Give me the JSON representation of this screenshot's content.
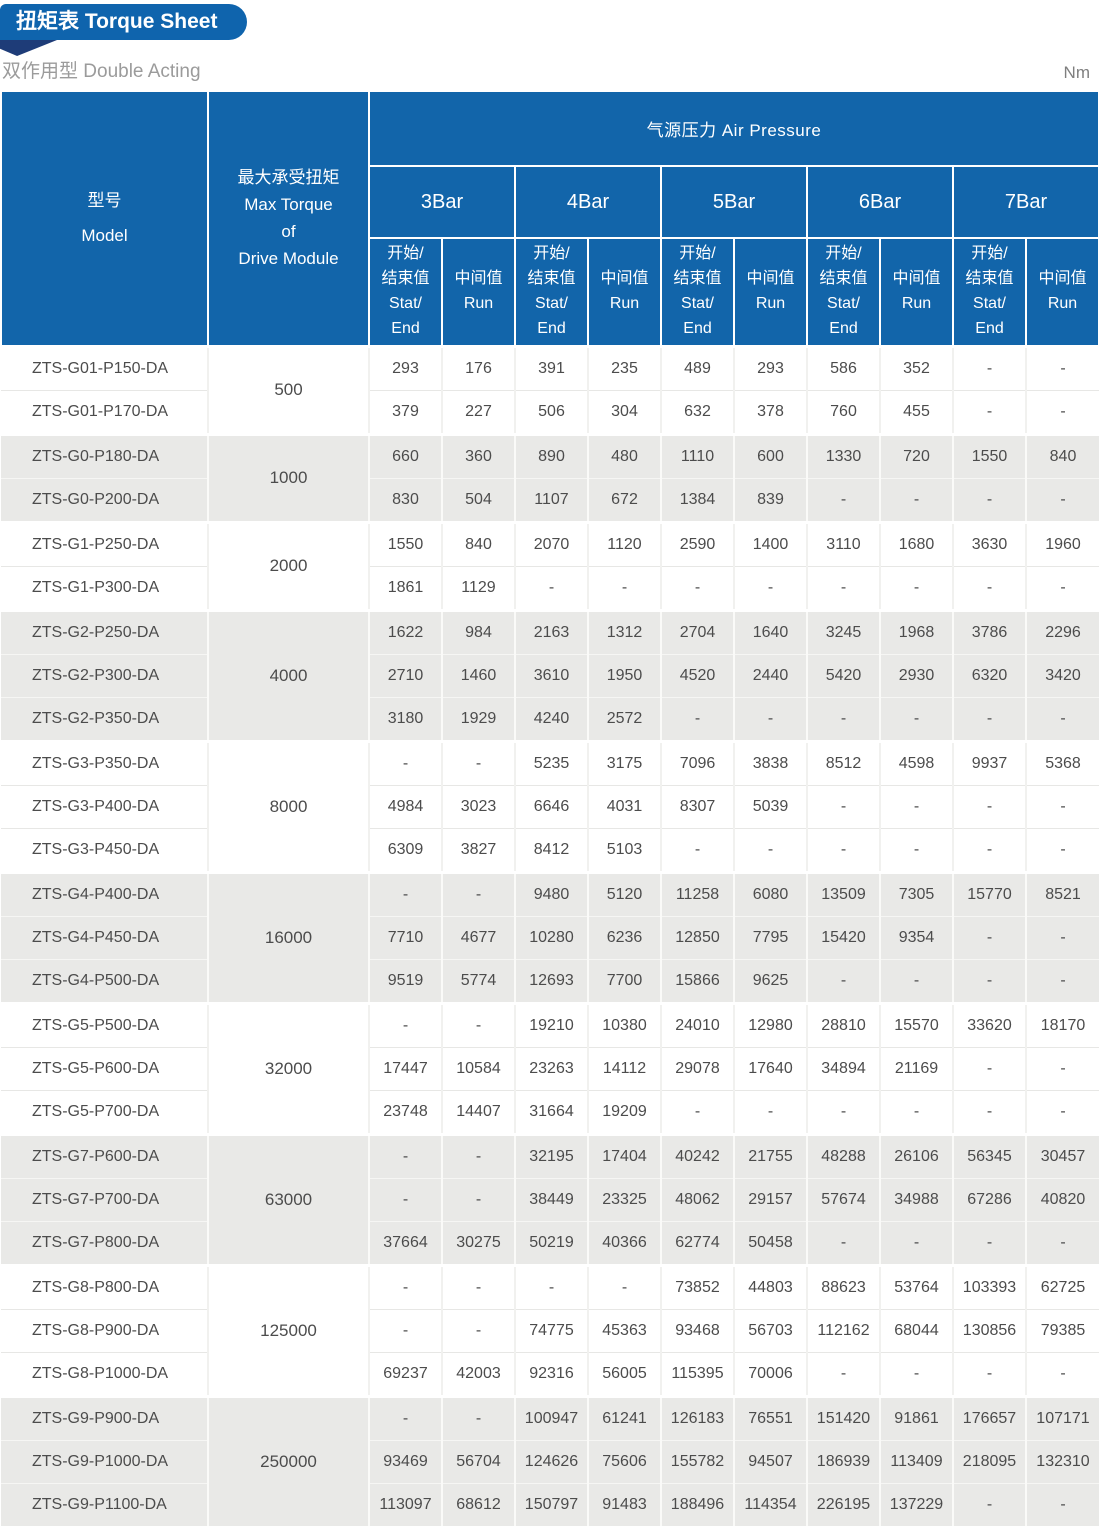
{
  "page": {
    "tab_title": "扭矩表 Torque Sheet",
    "subtitle": "双作用型 Double Acting",
    "unit": "Nm"
  },
  "colors": {
    "header_blue": "#1265aa",
    "tab_blue": "#0f64ad",
    "fold_navy": "#1e3c78",
    "row_gray": "#e9e9e7",
    "body_text": "#4c4c4c",
    "subtitle_gray": "#9b9b9b"
  },
  "table": {
    "header": {
      "model": "型号\nModel",
      "max_torque": "最大承受扭矩\nMax Torque\nof\nDrive Module",
      "air_pressure": "气源压力 Air Pressure",
      "bars": [
        "3Bar",
        "4Bar",
        "5Bar",
        "6Bar",
        "7Bar"
      ],
      "stat_end": "开始/\n结束值\nStat/\nEnd",
      "run": "中间值\nRun"
    },
    "groups": [
      {
        "max_torque": "500",
        "shade": "white",
        "rows": [
          {
            "model": "ZTS-G01-P150-DA",
            "values": [
              "293",
              "176",
              "391",
              "235",
              "489",
              "293",
              "586",
              "352",
              "-",
              "-"
            ]
          },
          {
            "model": "ZTS-G01-P170-DA",
            "values": [
              "379",
              "227",
              "506",
              "304",
              "632",
              "378",
              "760",
              "455",
              "-",
              "-"
            ]
          }
        ]
      },
      {
        "max_torque": "1000",
        "shade": "gray",
        "rows": [
          {
            "model": "ZTS-G0-P180-DA",
            "values": [
              "660",
              "360",
              "890",
              "480",
              "1110",
              "600",
              "1330",
              "720",
              "1550",
              "840"
            ]
          },
          {
            "model": "ZTS-G0-P200-DA",
            "values": [
              "830",
              "504",
              "1107",
              "672",
              "1384",
              "839",
              "-",
              "-",
              "-",
              "-"
            ]
          }
        ]
      },
      {
        "max_torque": "2000",
        "shade": "white",
        "rows": [
          {
            "model": "ZTS-G1-P250-DA",
            "values": [
              "1550",
              "840",
              "2070",
              "1120",
              "2590",
              "1400",
              "3110",
              "1680",
              "3630",
              "1960"
            ]
          },
          {
            "model": "ZTS-G1-P300-DA",
            "values": [
              "1861",
              "1129",
              "-",
              "-",
              "-",
              "-",
              "-",
              "-",
              "-",
              "-"
            ]
          }
        ]
      },
      {
        "max_torque": "4000",
        "shade": "gray",
        "rows": [
          {
            "model": "ZTS-G2-P250-DA",
            "values": [
              "1622",
              "984",
              "2163",
              "1312",
              "2704",
              "1640",
              "3245",
              "1968",
              "3786",
              "2296"
            ]
          },
          {
            "model": "ZTS-G2-P300-DA",
            "values": [
              "2710",
              "1460",
              "3610",
              "1950",
              "4520",
              "2440",
              "5420",
              "2930",
              "6320",
              "3420"
            ]
          },
          {
            "model": "ZTS-G2-P350-DA",
            "values": [
              "3180",
              "1929",
              "4240",
              "2572",
              "-",
              "-",
              "-",
              "-",
              "-",
              "-"
            ]
          }
        ]
      },
      {
        "max_torque": "8000",
        "shade": "white",
        "rows": [
          {
            "model": "ZTS-G3-P350-DA",
            "values": [
              "-",
              "-",
              "5235",
              "3175",
              "7096",
              "3838",
              "8512",
              "4598",
              "9937",
              "5368"
            ]
          },
          {
            "model": "ZTS-G3-P400-DA",
            "values": [
              "4984",
              "3023",
              "6646",
              "4031",
              "8307",
              "5039",
              "-",
              "-",
              "-",
              "-"
            ]
          },
          {
            "model": "ZTS-G3-P450-DA",
            "values": [
              "6309",
              "3827",
              "8412",
              "5103",
              "-",
              "-",
              "-",
              "-",
              "-",
              "-"
            ]
          }
        ]
      },
      {
        "max_torque": "16000",
        "shade": "gray",
        "rows": [
          {
            "model": "ZTS-G4-P400-DA",
            "values": [
              "-",
              "-",
              "9480",
              "5120",
              "11258",
              "6080",
              "13509",
              "7305",
              "15770",
              "8521"
            ]
          },
          {
            "model": "ZTS-G4-P450-DA",
            "values": [
              "7710",
              "4677",
              "10280",
              "6236",
              "12850",
              "7795",
              "15420",
              "9354",
              "-",
              "-"
            ]
          },
          {
            "model": "ZTS-G4-P500-DA",
            "values": [
              "9519",
              "5774",
              "12693",
              "7700",
              "15866",
              "9625",
              "-",
              "-",
              "-",
              "-"
            ]
          }
        ]
      },
      {
        "max_torque": "32000",
        "shade": "white",
        "rows": [
          {
            "model": "ZTS-G5-P500-DA",
            "values": [
              "-",
              "-",
              "19210",
              "10380",
              "24010",
              "12980",
              "28810",
              "15570",
              "33620",
              "18170"
            ]
          },
          {
            "model": "ZTS-G5-P600-DA",
            "values": [
              "17447",
              "10584",
              "23263",
              "14112",
              "29078",
              "17640",
              "34894",
              "21169",
              "-",
              "-"
            ]
          },
          {
            "model": "ZTS-G5-P700-DA",
            "values": [
              "23748",
              "14407",
              "31664",
              "19209",
              "-",
              "-",
              "-",
              "-",
              "-",
              "-"
            ]
          }
        ]
      },
      {
        "max_torque": "63000",
        "shade": "gray",
        "rows": [
          {
            "model": "ZTS-G7-P600-DA",
            "values": [
              "-",
              "-",
              "32195",
              "17404",
              "40242",
              "21755",
              "48288",
              "26106",
              "56345",
              "30457"
            ]
          },
          {
            "model": "ZTS-G7-P700-DA",
            "values": [
              "-",
              "-",
              "38449",
              "23325",
              "48062",
              "29157",
              "57674",
              "34988",
              "67286",
              "40820"
            ]
          },
          {
            "model": "ZTS-G7-P800-DA",
            "values": [
              "37664",
              "30275",
              "50219",
              "40366",
              "62774",
              "50458",
              "-",
              "-",
              "-",
              "-"
            ]
          }
        ]
      },
      {
        "max_torque": "125000",
        "shade": "white",
        "rows": [
          {
            "model": "ZTS-G8-P800-DA",
            "values": [
              "-",
              "-",
              "-",
              "-",
              "73852",
              "44803",
              "88623",
              "53764",
              "103393",
              "62725"
            ]
          },
          {
            "model": "ZTS-G8-P900-DA",
            "values": [
              "-",
              "-",
              "74775",
              "45363",
              "93468",
              "56703",
              "112162",
              "68044",
              "130856",
              "79385"
            ]
          },
          {
            "model": "ZTS-G8-P1000-DA",
            "values": [
              "69237",
              "42003",
              "92316",
              "56005",
              "115395",
              "70006",
              "-",
              "-",
              "-",
              "-"
            ]
          }
        ]
      },
      {
        "max_torque": "250000",
        "shade": "gray",
        "rows": [
          {
            "model": "ZTS-G9-P900-DA",
            "values": [
              "-",
              "-",
              "100947",
              "61241",
              "126183",
              "76551",
              "151420",
              "91861",
              "176657",
              "107171"
            ]
          },
          {
            "model": "ZTS-G9-P1000-DA",
            "values": [
              "93469",
              "56704",
              "124626",
              "75606",
              "155782",
              "94507",
              "186939",
              "113409",
              "218095",
              "132310"
            ]
          },
          {
            "model": "ZTS-G9-P1100-DA",
            "values": [
              "113097",
              "68612",
              "150797",
              "91483",
              "188496",
              "114354",
              "226195",
              "137229",
              "-",
              "-"
            ]
          }
        ]
      }
    ]
  }
}
